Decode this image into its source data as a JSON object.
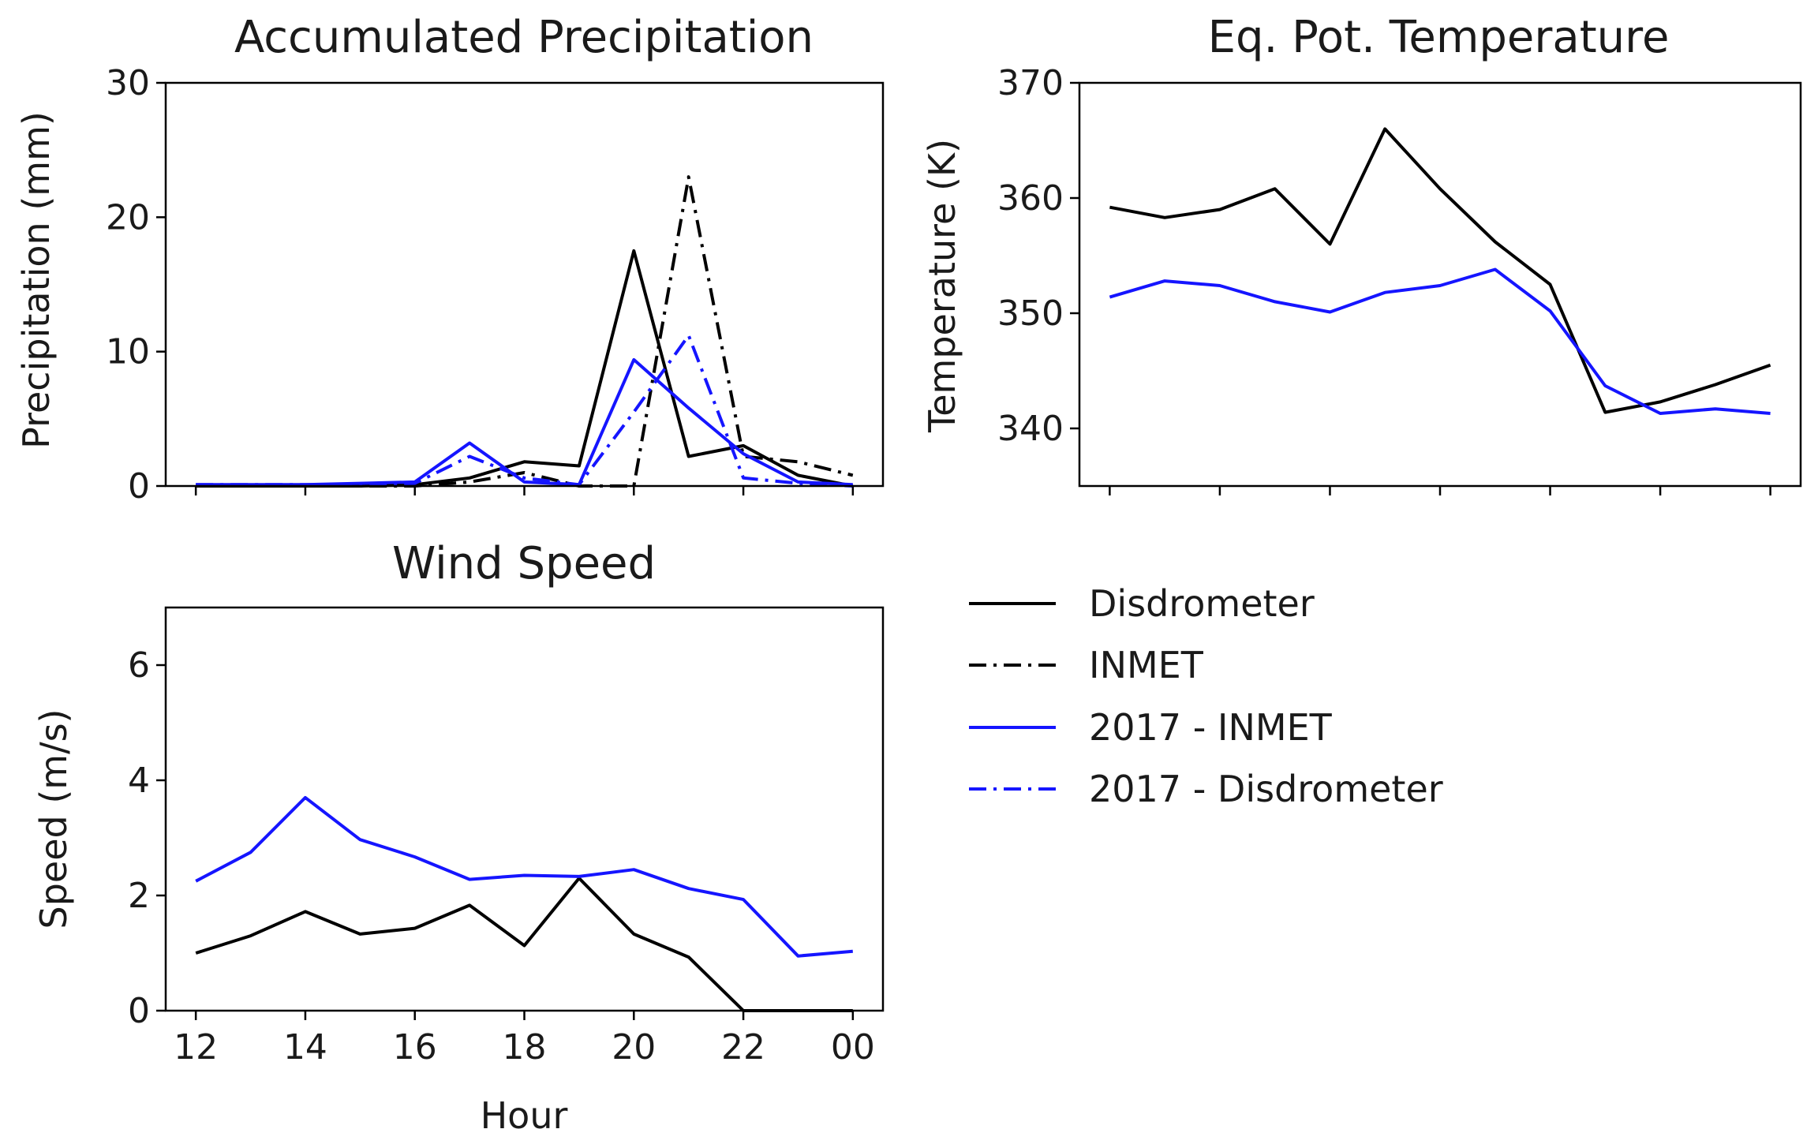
{
  "legend": [
    {
      "name": "Disdrometer",
      "color": "#000000",
      "dash": "solid"
    },
    {
      "name": "INMET",
      "color": "#000000",
      "dash": "dashdot"
    },
    {
      "name": "2017 - INMET",
      "color": "#1515ff",
      "dash": "solid"
    },
    {
      "name": "2017 - Disdrometer",
      "color": "#1515ff",
      "dash": "dashdot"
    }
  ],
  "chart_data": [
    {
      "id": "precip",
      "type": "line",
      "title": "Accumulated Precipitation",
      "xlabel": "",
      "ylabel": "Precipitation (mm)",
      "xlim": [
        12,
        24
      ],
      "ylim": [
        0,
        30
      ],
      "yticks": [
        0,
        10,
        20,
        30
      ],
      "x": [
        12,
        13,
        14,
        15,
        16,
        17,
        18,
        19,
        20,
        21,
        22,
        23,
        24
      ],
      "series": [
        {
          "name": "Disdrometer",
          "color": "#000000",
          "dash": "solid",
          "values": [
            0,
            0,
            0,
            0,
            0.1,
            0.6,
            1.8,
            1.5,
            17.5,
            2.2,
            3.0,
            0.8,
            0
          ]
        },
        {
          "name": "INMET",
          "color": "#000000",
          "dash": "dashdot",
          "values": [
            0,
            0,
            0,
            0,
            0,
            0.3,
            1.0,
            0,
            0,
            23.0,
            2.2,
            1.8,
            0.8
          ]
        },
        {
          "name": "2017 - INMET",
          "color": "#1515ff",
          "dash": "solid",
          "values": [
            0.1,
            0.1,
            0.1,
            0.2,
            0.3,
            3.2,
            0.3,
            0.1,
            9.4,
            5.8,
            2.4,
            0.3,
            0.1
          ]
        },
        {
          "name": "2017 - Disdrometer",
          "color": "#1515ff",
          "dash": "dashdot",
          "values": [
            0.1,
            0.1,
            0.1,
            0.1,
            0.2,
            2.2,
            0.6,
            0.1,
            5.5,
            11.2,
            0.6,
            0.2,
            0
          ]
        }
      ]
    },
    {
      "id": "theta",
      "type": "line",
      "title": "Eq. Pot. Temperature",
      "xlabel": "",
      "ylabel": "Temperature (K)",
      "xlim": [
        12,
        24
      ],
      "ylim": [
        335,
        370
      ],
      "yticks": [
        340,
        350,
        360,
        370
      ],
      "x": [
        12,
        13,
        14,
        15,
        16,
        17,
        18,
        19,
        20,
        21,
        22,
        23,
        24
      ],
      "series": [
        {
          "name": "Disdrometer",
          "color": "#000000",
          "dash": "solid",
          "values": [
            359.2,
            358.3,
            359.0,
            360.8,
            356.0,
            366.0,
            360.8,
            356.2,
            352.5,
            341.4,
            342.3,
            343.8,
            345.5
          ]
        },
        {
          "name": "2017 - INMET",
          "color": "#1515ff",
          "dash": "solid",
          "values": [
            351.4,
            352.8,
            352.4,
            351.0,
            350.1,
            351.8,
            352.4,
            353.8,
            350.2,
            343.7,
            341.3,
            341.7,
            341.3
          ]
        }
      ]
    },
    {
      "id": "wind",
      "type": "line",
      "title": "Wind Speed",
      "xlabel": "Hour",
      "ylabel": "Speed (m/s)",
      "xlim": [
        12,
        24
      ],
      "ylim": [
        0,
        7
      ],
      "yticks": [
        0,
        2,
        4,
        6
      ],
      "xticklabels": [
        "12",
        "14",
        "16",
        "18",
        "20",
        "22",
        "00"
      ],
      "x": [
        12,
        13,
        14,
        15,
        16,
        17,
        18,
        19,
        20,
        21,
        22,
        23,
        24
      ],
      "series": [
        {
          "name": "Disdrometer",
          "color": "#000000",
          "dash": "solid",
          "values": [
            1.0,
            1.3,
            1.72,
            1.33,
            1.43,
            1.83,
            1.13,
            2.3,
            1.33,
            0.93,
            0.0,
            0.0,
            0.0
          ]
        },
        {
          "name": "2017 - INMET",
          "color": "#1515ff",
          "dash": "solid",
          "values": [
            2.25,
            2.75,
            3.7,
            2.97,
            2.67,
            2.28,
            2.35,
            2.33,
            2.45,
            2.12,
            1.93,
            0.95,
            1.03
          ]
        }
      ]
    }
  ]
}
